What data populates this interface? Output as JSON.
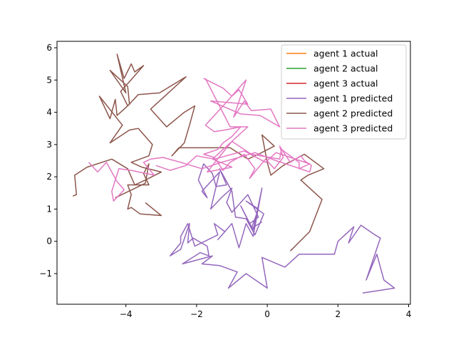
{
  "chart_data": {
    "type": "line",
    "title": "",
    "xlabel": "",
    "ylabel": "",
    "xlim": [
      -5.95,
      4.05
    ],
    "ylim": [
      -1.95,
      6.2
    ],
    "xticks": [
      -4,
      -2,
      0,
      2,
      4
    ],
    "yticks": [
      -1,
      0,
      1,
      2,
      3,
      4,
      5,
      6
    ],
    "xtick_labels": [
      "−4",
      "−2",
      "0",
      "2",
      "4"
    ],
    "ytick_labels": [
      "−1",
      "0",
      "1",
      "2",
      "3",
      "4",
      "5",
      "6"
    ],
    "grid": false,
    "legend_position": "top-right",
    "series": [
      {
        "name": "agent 1 actual",
        "color": "#ff7f0e",
        "points": []
      },
      {
        "name": "agent 2 actual",
        "color": "#2ca02c",
        "points": []
      },
      {
        "name": "agent 3 actual",
        "color": "#d62728",
        "points": []
      },
      {
        "name": "agent 1 predicted",
        "color": "#9467bd",
        "points": [
          [
            2.7,
            -1.6
          ],
          [
            3.6,
            -1.45
          ],
          [
            3.3,
            -1.2
          ],
          [
            3.1,
            -0.4
          ],
          [
            2.8,
            -1.2
          ],
          [
            3.2,
            0.1
          ],
          [
            3.05,
            0.2
          ],
          [
            2.65,
            0.5
          ],
          [
            2.3,
            -0.05
          ],
          [
            2.45,
            0.45
          ],
          [
            2.0,
            0.0
          ],
          [
            1.9,
            -0.4
          ],
          [
            0.9,
            -0.4
          ],
          [
            0.5,
            -0.8
          ],
          [
            -0.15,
            -0.5
          ],
          [
            0.0,
            -1.45
          ],
          [
            -0.6,
            -1.0
          ],
          [
            -1.1,
            -1.45
          ],
          [
            -0.85,
            -0.95
          ],
          [
            -1.35,
            -0.75
          ],
          [
            -1.85,
            -0.7
          ],
          [
            -1.55,
            -0.45
          ],
          [
            -2.4,
            -0.7
          ],
          [
            -1.9,
            -0.35
          ],
          [
            -1.65,
            -0.45
          ],
          [
            -1.7,
            -0.15
          ],
          [
            -2.1,
            0.1
          ],
          [
            -2.25,
            -0.05
          ],
          [
            -2.2,
            0.55
          ],
          [
            -2.45,
            -0.25
          ],
          [
            -2.75,
            -0.45
          ],
          [
            -2.45,
            -0.05
          ],
          [
            -2.45,
            0.15
          ],
          [
            -2.25,
            0.55
          ],
          [
            -2.05,
            -0.15
          ],
          [
            -1.4,
            0.2
          ],
          [
            -1.5,
            0.55
          ],
          [
            -1.2,
            0.3
          ],
          [
            -1.4,
            0.05
          ],
          [
            -1.0,
            0.55
          ],
          [
            -0.8,
            -0.2
          ],
          [
            -0.6,
            0.55
          ],
          [
            -0.4,
            0.15
          ],
          [
            -0.15,
            1.65
          ],
          [
            -0.4,
            0.35
          ],
          [
            -0.75,
            1.1
          ],
          [
            -0.5,
            0.55
          ],
          [
            -0.25,
            0.75
          ],
          [
            -0.55,
            1.45
          ],
          [
            -1.0,
            0.9
          ],
          [
            -1.15,
            1.2
          ],
          [
            -1.0,
            1.65
          ],
          [
            -1.3,
            1.35
          ],
          [
            -1.6,
            1.0
          ],
          [
            -1.35,
            2.15
          ],
          [
            -1.85,
            1.55
          ],
          [
            -1.7,
            1.35
          ],
          [
            -1.95,
            1.9
          ],
          [
            -1.8,
            2.4
          ],
          [
            -1.55,
            2.1
          ],
          [
            -1.45,
            1.7
          ],
          [
            -1.15,
            1.75
          ],
          [
            -1.35,
            2.25
          ],
          [
            -1.0,
            1.55
          ],
          [
            -0.9,
            0.75
          ],
          [
            -0.6,
            0.7
          ],
          [
            -0.35,
            0.2
          ],
          [
            -0.1,
            0.85
          ],
          [
            -0.6,
            1.25
          ],
          [
            -0.25,
            1.0
          ],
          [
            -0.45,
            0.4
          ],
          [
            -0.15,
            0.6
          ]
        ]
      },
      {
        "name": "agent 2 predicted",
        "color": "#8c564b",
        "points": [
          [
            0.65,
            -0.3
          ],
          [
            1.2,
            0.3
          ],
          [
            1.55,
            1.3
          ],
          [
            0.95,
            1.9
          ],
          [
            1.15,
            2.05
          ],
          [
            1.6,
            2.25
          ],
          [
            1.05,
            2.7
          ],
          [
            0.45,
            2.35
          ],
          [
            0.1,
            2.05
          ],
          [
            0.0,
            2.45
          ],
          [
            -0.15,
            3.3
          ],
          [
            0.2,
            2.95
          ],
          [
            -0.25,
            2.7
          ],
          [
            -0.55,
            2.55
          ],
          [
            -1.05,
            2.9
          ],
          [
            -1.9,
            2.9
          ],
          [
            -2.5,
            2.9
          ],
          [
            -2.7,
            2.65
          ],
          [
            -2.35,
            3.05
          ],
          [
            -2.2,
            3.6
          ],
          [
            -2.05,
            4.2
          ],
          [
            -2.35,
            4.0
          ],
          [
            -2.85,
            3.55
          ],
          [
            -3.3,
            4.1
          ],
          [
            -2.3,
            5.1
          ],
          [
            -3.05,
            4.6
          ],
          [
            -3.65,
            4.55
          ],
          [
            -3.95,
            4.2
          ],
          [
            -4.15,
            4.65
          ],
          [
            -3.9,
            4.95
          ],
          [
            -3.5,
            5.45
          ],
          [
            -3.75,
            5.25
          ],
          [
            -3.85,
            5.5
          ],
          [
            -4.05,
            5.05
          ],
          [
            -4.25,
            5.8
          ],
          [
            -4.0,
            4.6
          ],
          [
            -4.45,
            5.3
          ],
          [
            -3.95,
            4.8
          ],
          [
            -3.9,
            4.25
          ],
          [
            -4.25,
            3.9
          ],
          [
            -4.3,
            4.4
          ],
          [
            -4.45,
            3.8
          ],
          [
            -4.75,
            4.5
          ],
          [
            -4.1,
            3.6
          ],
          [
            -4.45,
            3.05
          ],
          [
            -3.9,
            3.45
          ],
          [
            -3.65,
            3.5
          ],
          [
            -3.25,
            3.0
          ],
          [
            -3.35,
            2.65
          ],
          [
            -3.85,
            2.45
          ],
          [
            -3.55,
            2.3
          ],
          [
            -3.0,
            2.15
          ],
          [
            -3.45,
            1.9
          ],
          [
            -3.75,
            1.75
          ],
          [
            -3.95,
            2.25
          ],
          [
            -4.4,
            2.55
          ],
          [
            -5.1,
            2.3
          ],
          [
            -5.45,
            2.05
          ],
          [
            -5.4,
            1.45
          ],
          [
            -5.5,
            1.4
          ]
        ]
      },
      {
        "name": "agent 2 predicted (tail)",
        "color": "#8c564b",
        "points": [
          [
            -4.3,
            1.35
          ],
          [
            -3.45,
            1.8
          ],
          [
            -3.35,
            2.4
          ],
          [
            -3.5,
            2.1
          ],
          [
            -3.35,
            1.75
          ],
          [
            -3.95,
            1.75
          ],
          [
            -3.85,
            1.45
          ],
          [
            -3.95,
            1.0
          ],
          [
            -3.85,
            1.05
          ],
          [
            -3.6,
            0.85
          ],
          [
            -3.0,
            0.8
          ],
          [
            -3.45,
            1.2
          ]
        ]
      },
      {
        "name": "agent 3 predicted",
        "color": "#e377c2",
        "points": [
          [
            -1.8,
            5.05
          ],
          [
            -1.25,
            4.75
          ],
          [
            -1.0,
            4.5
          ],
          [
            -0.8,
            4.7
          ],
          [
            -0.55,
            4.25
          ],
          [
            -1.6,
            4.35
          ],
          [
            -0.75,
            3.95
          ],
          [
            -0.2,
            3.9
          ],
          [
            0.35,
            3.55
          ],
          [
            0.1,
            4.1
          ],
          [
            -0.45,
            4.05
          ],
          [
            -0.65,
            4.35
          ],
          [
            -0.95,
            3.85
          ],
          [
            -0.6,
            5.0
          ],
          [
            -1.25,
            4.2
          ],
          [
            -1.75,
            3.6
          ],
          [
            -1.5,
            3.4
          ],
          [
            -1.2,
            3.45
          ],
          [
            -0.75,
            3.55
          ],
          [
            -1.0,
            3.25
          ],
          [
            -1.25,
            3.05
          ],
          [
            -1.4,
            2.85
          ],
          [
            -1.8,
            2.7
          ],
          [
            -1.5,
            2.6
          ],
          [
            -1.25,
            2.2
          ],
          [
            -1.05,
            2.45
          ],
          [
            -0.65,
            2.7
          ],
          [
            -0.35,
            2.25
          ],
          [
            -0.5,
            1.95
          ],
          [
            -0.05,
            2.55
          ],
          [
            0.2,
            2.25
          ],
          [
            0.45,
            2.6
          ],
          [
            0.35,
            2.95
          ],
          [
            0.65,
            2.45
          ],
          [
            0.95,
            2.65
          ],
          [
            1.05,
            2.5
          ],
          [
            1.25,
            2.35
          ],
          [
            1.2,
            2.15
          ],
          [
            0.8,
            2.3
          ],
          [
            0.25,
            2.5
          ],
          [
            -0.35,
            2.75
          ],
          [
            -0.8,
            2.6
          ],
          [
            -1.3,
            2.45
          ],
          [
            -1.85,
            2.25
          ],
          [
            -2.15,
            2.35
          ],
          [
            -2.45,
            2.45
          ],
          [
            -2.95,
            2.6
          ],
          [
            -3.3,
            2.55
          ],
          [
            -3.5,
            2.45
          ],
          [
            -3.2,
            2.05
          ],
          [
            -3.85,
            2.2
          ],
          [
            -4.2,
            2.25
          ],
          [
            -4.4,
            1.55
          ],
          [
            -4.35,
            1.25
          ],
          [
            -4.05,
            1.6
          ],
          [
            -4.25,
            1.85
          ],
          [
            -4.55,
            2.45
          ],
          [
            -4.8,
            2.15
          ],
          [
            -5.05,
            2.45
          ]
        ]
      },
      {
        "name": "agent 3 predicted (tail)",
        "color": "#e377c2",
        "points": [
          [
            -1.75,
            5.05
          ],
          [
            -1.05,
            3.55
          ],
          [
            -0.55,
            3.55
          ],
          [
            -1.55,
            2.55
          ],
          [
            -1.0,
            2.3
          ],
          [
            -1.7,
            2.15
          ],
          [
            -1.0,
            3.1
          ],
          [
            -0.45,
            2.7
          ],
          [
            0.35,
            2.55
          ],
          [
            0.4,
            2.85
          ],
          [
            0.9,
            2.45
          ],
          [
            0.9,
            2.25
          ],
          [
            1.2,
            2.4
          ],
          [
            0.25,
            2.75
          ],
          [
            -0.05,
            2.45
          ],
          [
            -0.65,
            2.8
          ],
          [
            -1.5,
            2.55
          ],
          [
            -2.0,
            2.65
          ],
          [
            -2.3,
            2.35
          ],
          [
            -2.75,
            2.2
          ],
          [
            -3.15,
            2.35
          ]
        ]
      }
    ],
    "legend": [
      "agent 1 actual",
      "agent 2 actual",
      "agent 3 actual",
      "agent 1 predicted",
      "agent 2 predicted",
      "agent 3 predicted"
    ]
  }
}
